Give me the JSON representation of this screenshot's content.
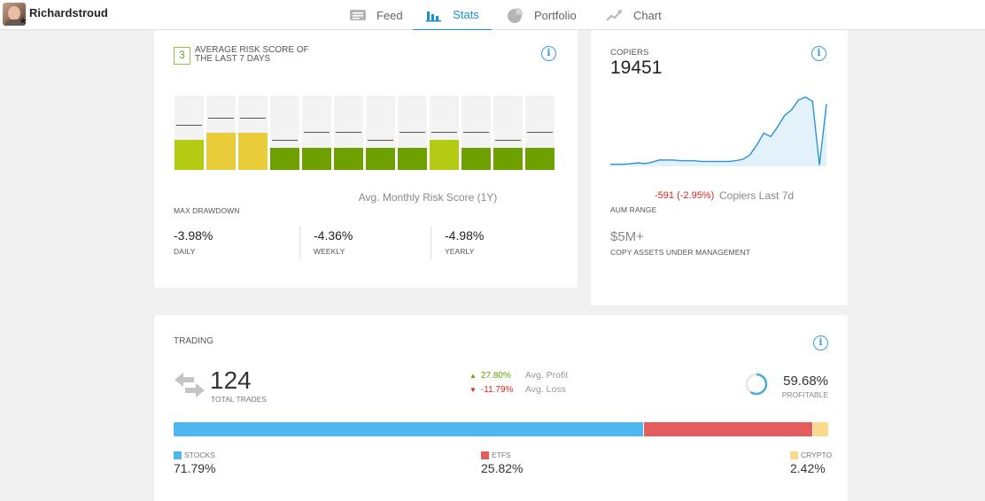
{
  "header": {
    "username": "Richardstroud",
    "nav": [
      {
        "label": "Feed",
        "icon": "feed-icon"
      },
      {
        "label": "Stats",
        "icon": "stats-icon",
        "active": true
      },
      {
        "label": "Portfolio",
        "icon": "portfolio-icon"
      },
      {
        "label": "Chart",
        "icon": "chart-icon"
      }
    ]
  },
  "risk": {
    "score": "3",
    "title": "AVERAGE RISK SCORE OF THE LAST 7 DAYS",
    "avg_label": "Avg. Monthly Risk Score (1Y)",
    "bars": [
      {
        "score": 4,
        "max": 5,
        "color": "#b3cc13"
      },
      {
        "score": 5,
        "max": 6,
        "color": "#e8cc3a"
      },
      {
        "score": 5,
        "max": 6,
        "color": "#e8cc3a"
      },
      {
        "score": 3,
        "max": 3,
        "color": "#6ea000"
      },
      {
        "score": 3,
        "max": 4,
        "color": "#6ea000"
      },
      {
        "score": 3,
        "max": 4,
        "color": "#6ea000"
      },
      {
        "score": 3,
        "max": 3,
        "color": "#6ea000"
      },
      {
        "score": 3,
        "max": 4,
        "color": "#6ea000"
      },
      {
        "score": 4,
        "max": 4,
        "color": "#b3cc13"
      },
      {
        "score": 3,
        "max": 4,
        "color": "#6ea000"
      },
      {
        "score": 3,
        "max": 3,
        "color": "#6ea000"
      },
      {
        "score": 3,
        "max": 4,
        "color": "#6ea000"
      }
    ]
  },
  "drawdown": {
    "title": "MAX DRAWDOWN",
    "items": [
      {
        "value": "-3.98%",
        "label": "DAILY"
      },
      {
        "value": "-4.36%",
        "label": "WEEKLY"
      },
      {
        "value": "-4.98%",
        "label": "YEARLY"
      }
    ]
  },
  "copiers": {
    "label": "COPIERS",
    "value": "19451",
    "change": "-591 (-2.95%)",
    "change_label": "Copiers Last 7d",
    "aum_label": "AUM RANGE",
    "assets_value": "$5M+",
    "assets_label": "COPY ASSETS UNDER MANAGEMENT",
    "trend": [
      0.03,
      0.03,
      0.03,
      0.04,
      0.05,
      0.04,
      0.06,
      0.09,
      0.09,
      0.09,
      0.08,
      0.08,
      0.08,
      0.07,
      0.07,
      0.07,
      0.07,
      0.07,
      0.08,
      0.1,
      0.16,
      0.3,
      0.47,
      0.42,
      0.56,
      0.72,
      0.8,
      0.94,
      0.98,
      0.92,
      0.02,
      0.88
    ]
  },
  "trading": {
    "title": "TRADING",
    "total_value": "124",
    "total_label": "TOTAL TRADES",
    "avg_profit_pct": "27.80%",
    "avg_profit_label": "Avg. Profit",
    "avg_loss_pct": "-11.79%",
    "avg_loss_label": "Avg. Loss",
    "profitable_value": "59.68%",
    "profitable_label": "PROFITABLE",
    "profitable_fraction": 0.5968,
    "distribution": [
      {
        "label": "STOCKS",
        "value": "71.79%",
        "fraction": 0.7179,
        "color": "#4db8ef"
      },
      {
        "label": "ETFS",
        "value": "25.82%",
        "fraction": 0.2582,
        "color": "#e55c5c"
      },
      {
        "label": "CRYPTO",
        "value": "2.42%",
        "fraction": 0.0242,
        "color": "#fad98c"
      }
    ]
  }
}
